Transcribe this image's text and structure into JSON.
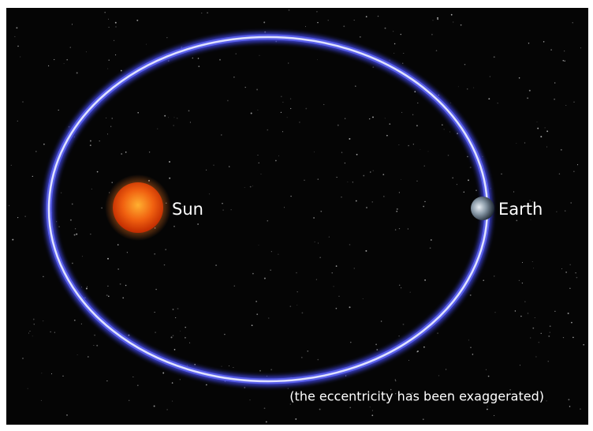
{
  "bodies": {
    "sun": {
      "label": "Sun"
    },
    "earth": {
      "label": "Earth"
    }
  },
  "caption": "(the eccentricity has been exaggerated)"
}
